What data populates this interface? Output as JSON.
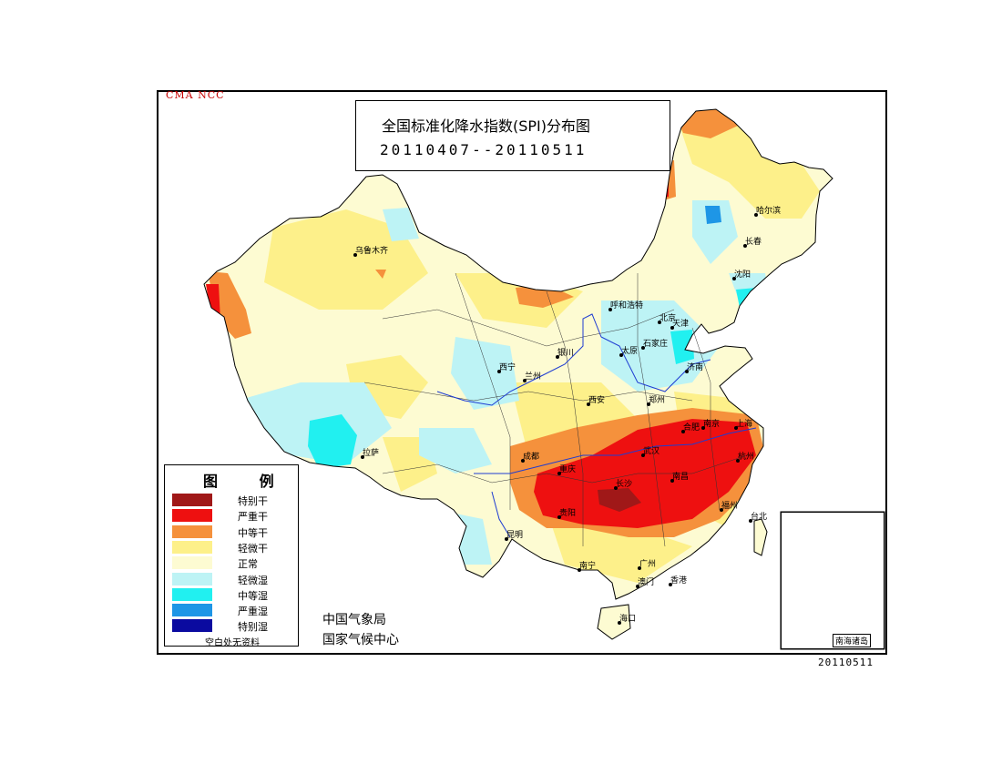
{
  "credit": "CMA NCC",
  "title": "全国标准化降水指数(SPI)分布图",
  "date_range": "20110407--20110511",
  "legend": {
    "title": "图 例",
    "items": [
      {
        "label": "特别干",
        "color": "#a01818"
      },
      {
        "label": "严重干",
        "color": "#ee1010"
      },
      {
        "label": "中等干",
        "color": "#f5913c"
      },
      {
        "label": "轻微干",
        "color": "#fdf08a"
      },
      {
        "label": "正常",
        "color": "#fdfbd2"
      },
      {
        "label": "轻微湿",
        "color": "#bdf3f5"
      },
      {
        "label": "中等湿",
        "color": "#21f0f0"
      },
      {
        "label": "严重湿",
        "color": "#1e96e6"
      },
      {
        "label": "特别湿",
        "color": "#0a0aa0"
      }
    ],
    "note": "空白处无资料"
  },
  "agency": {
    "line1": "中国气象局",
    "line2": "国家气候中心"
  },
  "inset_label": "南海诸岛",
  "footer_date": "20110511",
  "cities": [
    {
      "name": "乌鲁木齐"
    },
    {
      "name": "哈尔滨"
    },
    {
      "name": "长春"
    },
    {
      "name": "沈阳"
    },
    {
      "name": "呼和浩特"
    },
    {
      "name": "北京"
    },
    {
      "name": "天津"
    },
    {
      "name": "石家庄"
    },
    {
      "name": "太原"
    },
    {
      "name": "济南"
    },
    {
      "name": "银川"
    },
    {
      "name": "兰州"
    },
    {
      "name": "西宁"
    },
    {
      "name": "西安"
    },
    {
      "name": "郑州"
    },
    {
      "name": "合肥"
    },
    {
      "name": "南京"
    },
    {
      "name": "上海"
    },
    {
      "name": "杭州"
    },
    {
      "name": "武汉"
    },
    {
      "name": "拉萨"
    },
    {
      "name": "成都"
    },
    {
      "name": "重庆"
    },
    {
      "name": "长沙"
    },
    {
      "name": "南昌"
    },
    {
      "name": "贵阳"
    },
    {
      "name": "福州"
    },
    {
      "name": "台北"
    },
    {
      "name": "昆明"
    },
    {
      "name": "南宁"
    },
    {
      "name": "广州"
    },
    {
      "name": "澳门"
    },
    {
      "name": "香港"
    },
    {
      "name": "海口"
    }
  ]
}
